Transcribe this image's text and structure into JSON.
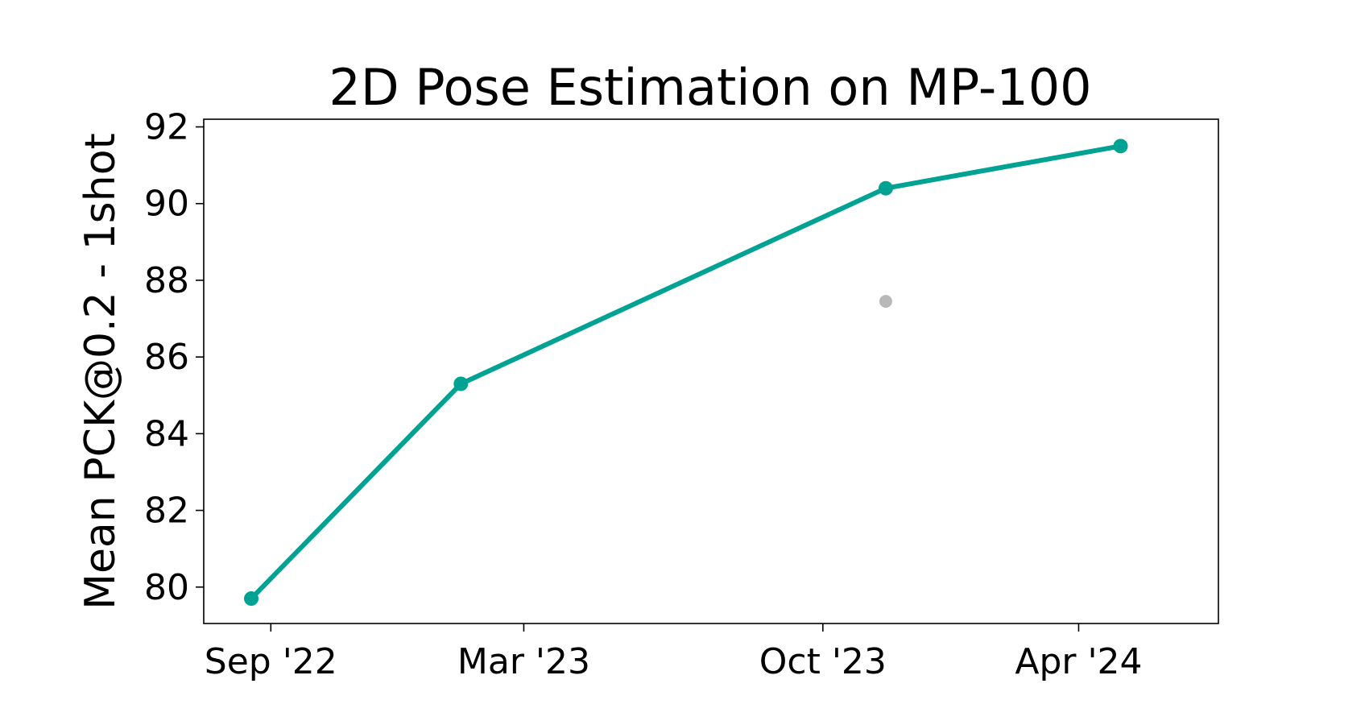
{
  "chart_data": {
    "type": "line",
    "title": "2D Pose Estimation on MP-100",
    "xlabel": "",
    "ylabel": "Mean PCK@0.2 - 1shot",
    "x_ticks": [
      {
        "date": "2022-09-01",
        "label": "Sep '22"
      },
      {
        "date": "2023-03-01",
        "label": "Mar '23"
      },
      {
        "date": "2023-10-01",
        "label": "Oct '23"
      },
      {
        "date": "2024-04-01",
        "label": "Apr '24"
      }
    ],
    "xlim": [
      "2022-07-15",
      "2024-07-10"
    ],
    "ylim": [
      79.05,
      92.2
    ],
    "y_ticks": [
      80,
      82,
      84,
      86,
      88,
      90,
      92
    ],
    "grid": false,
    "legend": "none",
    "series": [
      {
        "color": "#00a294",
        "points": [
          {
            "x": "2022-08-18",
            "y": 79.7
          },
          {
            "x": "2023-01-15",
            "y": 85.3
          },
          {
            "x": "2023-11-15",
            "y": 90.4
          },
          {
            "x": "2024-05-01",
            "y": 91.5
          }
        ]
      }
    ],
    "extra_points": [
      {
        "x": "2023-11-15",
        "y": 87.45,
        "color": "#b8b8b8"
      }
    ]
  }
}
